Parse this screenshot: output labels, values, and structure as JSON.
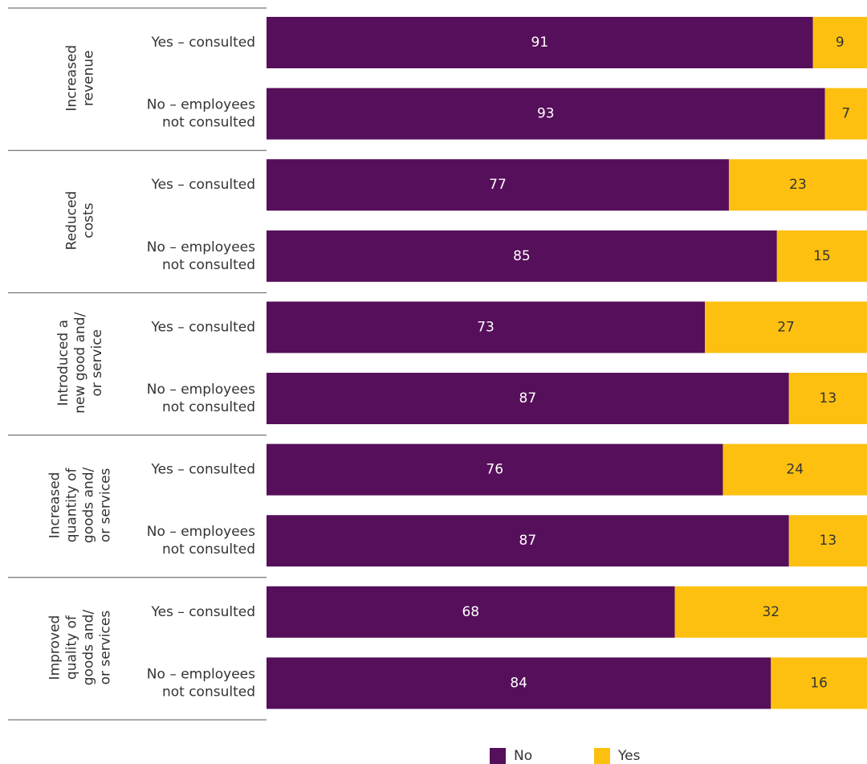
{
  "chart_data": {
    "type": "bar",
    "orientation": "horizontal",
    "stacked": true,
    "groups": [
      {
        "label": [
          "Increased",
          "revenue"
        ],
        "categories": [
          [
            "Yes – consulted"
          ],
          [
            "No – employees",
            "not consulted"
          ]
        ]
      },
      {
        "label": [
          "Reduced",
          "costs"
        ],
        "categories": [
          [
            "Yes – consulted"
          ],
          [
            "No – employees",
            "not consulted"
          ]
        ]
      },
      {
        "label": [
          "Introduced a",
          "new good and/",
          "or service"
        ],
        "categories": [
          [
            "Yes – consulted"
          ],
          [
            "No – employees",
            "not consulted"
          ]
        ]
      },
      {
        "label": [
          "Increased",
          "quantity of",
          "goods and/",
          "or services"
        ],
        "categories": [
          [
            "Yes – consulted"
          ],
          [
            "No – employees",
            "not consulted"
          ]
        ]
      },
      {
        "label": [
          "Improved",
          "quality of",
          "goods and/",
          "or services"
        ],
        "categories": [
          [
            "Yes – consulted"
          ],
          [
            "No – employees",
            "not consulted"
          ]
        ]
      }
    ],
    "series": [
      {
        "name": "No",
        "color": "#560f5a",
        "label_color": "#ffffff",
        "values": [
          91,
          93,
          77,
          85,
          73,
          87,
          76,
          87,
          68,
          84
        ]
      },
      {
        "name": "Yes",
        "color": "#fdc010",
        "label_color": "#333333",
        "values": [
          9,
          7,
          23,
          15,
          27,
          13,
          24,
          13,
          32,
          16
        ]
      }
    ],
    "xlim": [
      0,
      100
    ],
    "legend": "bottom"
  }
}
